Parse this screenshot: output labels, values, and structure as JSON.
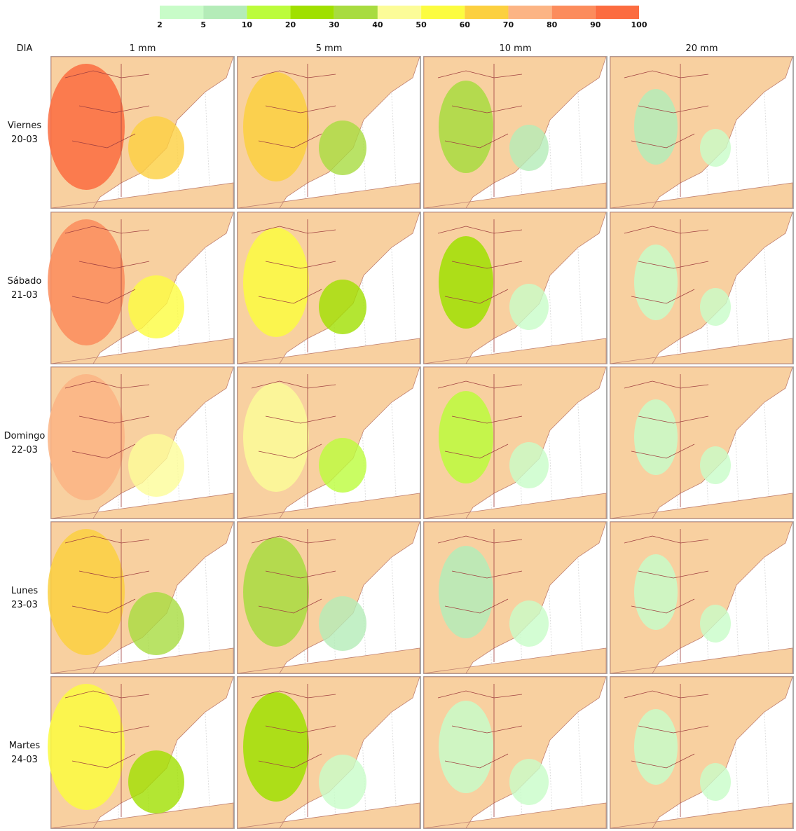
{
  "colorbar": {
    "ticks": [
      2,
      5,
      10,
      20,
      30,
      40,
      50,
      60,
      70,
      80,
      90,
      100
    ],
    "colors": [
      "#c8fcc8",
      "#b4ecb8",
      "#bcfc3c",
      "#a0e000",
      "#a8dc40",
      "#fcfc98",
      "#fcfc40",
      "#fcd040",
      "#fcb484",
      "#fc8c5c",
      "#fc6c40"
    ]
  },
  "header": {
    "label": "DIA",
    "columns": [
      "1 mm",
      "5 mm",
      "10 mm",
      "20 mm"
    ]
  },
  "rows": [
    {
      "day": "Viernes",
      "date": "20-03"
    },
    {
      "day": "Sábado",
      "date": "21-03"
    },
    {
      "day": "Domingo",
      "date": "22-03"
    },
    {
      "day": "Lunes",
      "date": "23-03"
    },
    {
      "day": "Martes",
      "date": "24-03"
    }
  ]
}
